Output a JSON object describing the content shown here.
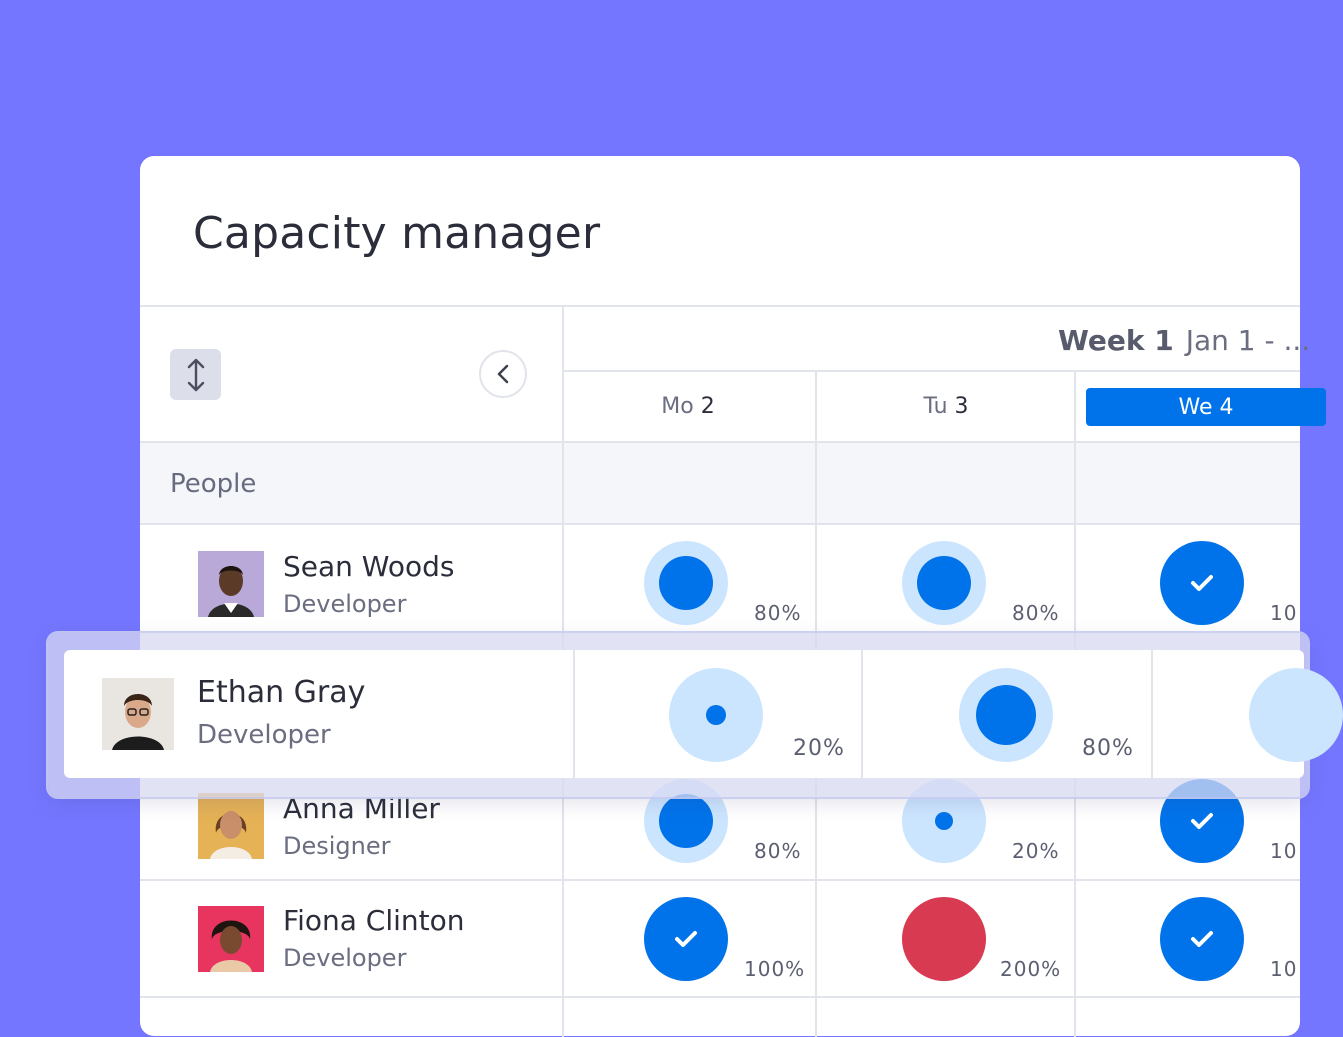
{
  "app": {
    "title": "Capacity manager"
  },
  "week": {
    "label": "Week 1",
    "range": "Jan 1 - ..."
  },
  "days": [
    {
      "name": "Mo",
      "num": "2"
    },
    {
      "name": "Tu",
      "num": "3"
    },
    {
      "name": "We",
      "num": "4",
      "active": true
    }
  ],
  "people_label": "People",
  "people": [
    {
      "name": "Sean Woods",
      "role": "Developer",
      "capacity": [
        "80%",
        "80%",
        "10"
      ]
    },
    {
      "name": "Ethan Gray",
      "role": "Developer",
      "capacity": [
        "20%",
        "80%",
        ""
      ]
    },
    {
      "name": "Anna Miller",
      "role": "Designer",
      "capacity": [
        "80%",
        "20%",
        "10"
      ]
    },
    {
      "name": "Fiona Clinton",
      "role": "Developer",
      "capacity": [
        "100%",
        "200%",
        "10"
      ]
    }
  ],
  "colors": {
    "background": "#7476ff",
    "accent": "#0073ea",
    "light_blue": "#cce5ff",
    "over_capacity": "#d83a52"
  },
  "icons": [
    "sort-icon",
    "chevron-left-icon",
    "check-icon"
  ]
}
